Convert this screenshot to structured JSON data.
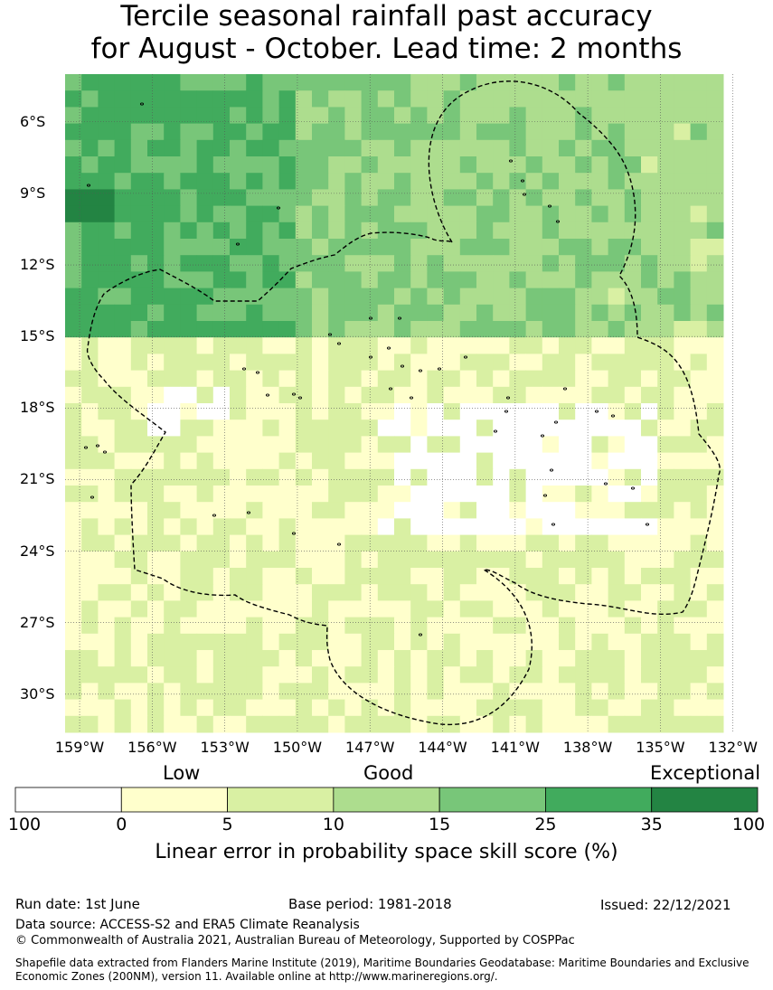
{
  "title": {
    "line1": "Tercile seasonal rainfall past accuracy",
    "line2": "for August - October. Lead time: 2 months"
  },
  "map": {
    "lat_labels": [
      "6°S",
      "9°S",
      "12°S",
      "15°S",
      "18°S",
      "21°S",
      "24°S",
      "27°S",
      "30°S"
    ],
    "lat_values": [
      -6,
      -9,
      -12,
      -15,
      -18,
      -21,
      -24,
      -27,
      -30
    ],
    "lon_labels": [
      "159°W",
      "156°W",
      "153°W",
      "150°W",
      "147°W",
      "144°W",
      "141°W",
      "138°W",
      "135°W",
      "132°W"
    ],
    "lon_values": [
      -159,
      -156,
      -153,
      -150,
      -147,
      -144,
      -141,
      -138,
      -135,
      -132
    ],
    "lon_range": [
      -159.6,
      -132.4
    ],
    "lat_range": [
      -4.0,
      -31.6
    ],
    "grid_color": "#555555",
    "eez_outline_color": "#000000"
  },
  "legend": {
    "categories": [
      {
        "label": "Low"
      },
      {
        "label": "Good"
      },
      {
        "label": "Exceptional"
      }
    ],
    "bins": [
      {
        "from": "100",
        "to": "0",
        "color": "#ffffff"
      },
      {
        "from": "0",
        "to": "5",
        "color": "#ffffcc"
      },
      {
        "from": "5",
        "to": "10",
        "color": "#d9f0a3"
      },
      {
        "from": "10",
        "to": "15",
        "color": "#addd8e"
      },
      {
        "from": "15",
        "to": "25",
        "color": "#78c679"
      },
      {
        "from": "25",
        "to": "35",
        "color": "#41ab5d"
      },
      {
        "from": "35",
        "to": "100",
        "color": "#238443"
      }
    ],
    "ticks": [
      "100",
      "0",
      "5",
      "10",
      "15",
      "25",
      "35",
      "100"
    ],
    "title": "Linear error in probability space skill score (%)"
  },
  "footer": {
    "run_date": "Run date: 1st June",
    "base_period": "Base period: 1981-2018",
    "issued": "Issued: 22/12/2021",
    "data_source": "Data source: ACCESS-S2 and ERA5 Climate Reanalysis",
    "copyright": "© Commonwealth of Australia 2021, Australian Bureau of Meteorology, Supported by COSPPac",
    "shapefile_line1": "Shapefile data extracted from Flanders Marine Institute (2019), Maritime Boundaries Geodatabase: Maritime Boundaries and Exclusive",
    "shapefile_line2": "Economic Zones (200NM), version 11. Available online at http://www.marineregions.org/."
  }
}
